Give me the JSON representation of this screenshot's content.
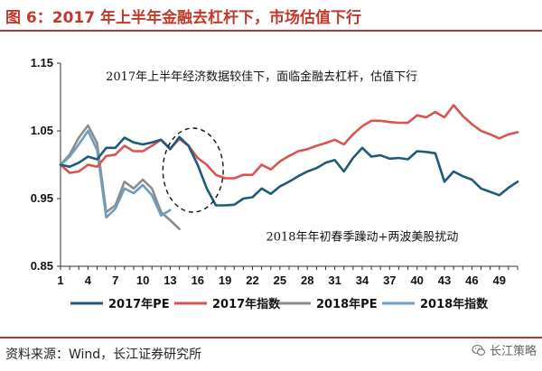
{
  "title": "图 6：2017 年上半年金融去杠杆下，市场估值下行",
  "source": "资料来源：Wind，长江证券研究所",
  "watermark": "长江策略",
  "colors": {
    "pe2017": "#1f5a7a",
    "idx2017": "#d9534f",
    "pe2018": "#8c8c8c",
    "idx2018": "#6f9cbf",
    "accent": "#b03a2e"
  },
  "chart_data": {
    "type": "line",
    "title": "",
    "xlabel": "",
    "ylabel": "",
    "ylim": [
      0.85,
      1.15
    ],
    "yticks": [
      "0.85",
      "0.95",
      "1.05",
      "1.15"
    ],
    "xlim": [
      1,
      51
    ],
    "xticks": [
      1,
      4,
      7,
      10,
      13,
      16,
      19,
      22,
      25,
      28,
      31,
      34,
      37,
      40,
      43,
      46,
      49
    ],
    "legend_position": "bottom",
    "annotations": [
      {
        "text": "2017年上半年经济数据较佳下，面临金融去杠杆，估值下行",
        "x": 23,
        "y": 1.125
      },
      {
        "text": "2018年年初春季躁动+两波美股扰动",
        "x": 34,
        "y": 0.888
      }
    ],
    "highlight_ellipse": {
      "x_center": 15.5,
      "y_center": 0.992,
      "x_radius": 3.3,
      "y_radius": 0.062
    },
    "series": [
      {
        "name": "2017年PE",
        "color": "#1f5a7a",
        "x": [
          1,
          2,
          3,
          4,
          5,
          6,
          7,
          8,
          9,
          10,
          11,
          12,
          13,
          14,
          15,
          16,
          17,
          18,
          19,
          20,
          21,
          22,
          23,
          24,
          25,
          26,
          27,
          28,
          29,
          30,
          31,
          32,
          33,
          34,
          35,
          36,
          37,
          38,
          39,
          40,
          41,
          42,
          43,
          44,
          45,
          46,
          47,
          48,
          49,
          50,
          51
        ],
        "values": [
          1.0,
          0.997,
          1.003,
          1.012,
          1.008,
          1.025,
          1.025,
          1.04,
          1.033,
          1.03,
          1.033,
          1.037,
          1.023,
          1.041,
          1.028,
          1.0,
          0.965,
          0.94,
          0.94,
          0.941,
          0.95,
          0.952,
          0.965,
          0.957,
          0.968,
          0.975,
          0.983,
          0.99,
          0.995,
          1.003,
          1.007,
          0.99,
          1.01,
          1.025,
          1.012,
          1.014,
          1.009,
          1.01,
          1.008,
          1.02,
          1.019,
          1.017,
          0.975,
          0.99,
          0.983,
          0.978,
          0.965,
          0.96,
          0.955,
          0.966,
          0.975
        ]
      },
      {
        "name": "2017年指数",
        "color": "#d9534f",
        "x": [
          1,
          2,
          3,
          4,
          5,
          6,
          7,
          8,
          9,
          10,
          11,
          12,
          13,
          14,
          15,
          16,
          17,
          18,
          19,
          20,
          21,
          22,
          23,
          24,
          25,
          26,
          27,
          28,
          29,
          30,
          31,
          32,
          33,
          34,
          35,
          36,
          37,
          38,
          39,
          40,
          41,
          42,
          43,
          44,
          45,
          46,
          47,
          48,
          49,
          50,
          51
        ],
        "values": [
          1.0,
          0.988,
          0.99,
          1.0,
          0.997,
          1.013,
          1.015,
          1.028,
          1.02,
          1.02,
          1.028,
          1.037,
          1.024,
          1.038,
          1.028,
          1.01,
          1.0,
          0.985,
          0.98,
          0.98,
          0.985,
          0.985,
          1.0,
          0.993,
          1.005,
          1.013,
          1.02,
          1.023,
          1.028,
          1.032,
          1.037,
          1.03,
          1.045,
          1.057,
          1.065,
          1.065,
          1.063,
          1.062,
          1.062,
          1.073,
          1.07,
          1.078,
          1.07,
          1.088,
          1.072,
          1.06,
          1.05,
          1.045,
          1.039,
          1.045,
          1.048
        ]
      },
      {
        "name": "2018年PE",
        "color": "#8c8c8c",
        "x": [
          1,
          2,
          3,
          4,
          5,
          6,
          7,
          8,
          9,
          10,
          11,
          12,
          13,
          14
        ],
        "values": [
          1.0,
          1.015,
          1.04,
          1.058,
          1.032,
          0.93,
          0.94,
          0.975,
          0.965,
          0.978,
          0.965,
          0.93,
          0.918,
          0.905
        ]
      },
      {
        "name": "2018年指数",
        "color": "#6f9cbf",
        "x": [
          1,
          2,
          3,
          4,
          5,
          6,
          7,
          8,
          9,
          10,
          11,
          12,
          13,
          14
        ],
        "values": [
          1.0,
          1.012,
          1.03,
          1.05,
          1.022,
          0.922,
          0.935,
          0.965,
          0.958,
          0.97,
          0.955,
          0.925,
          0.933,
          null
        ]
      }
    ]
  }
}
